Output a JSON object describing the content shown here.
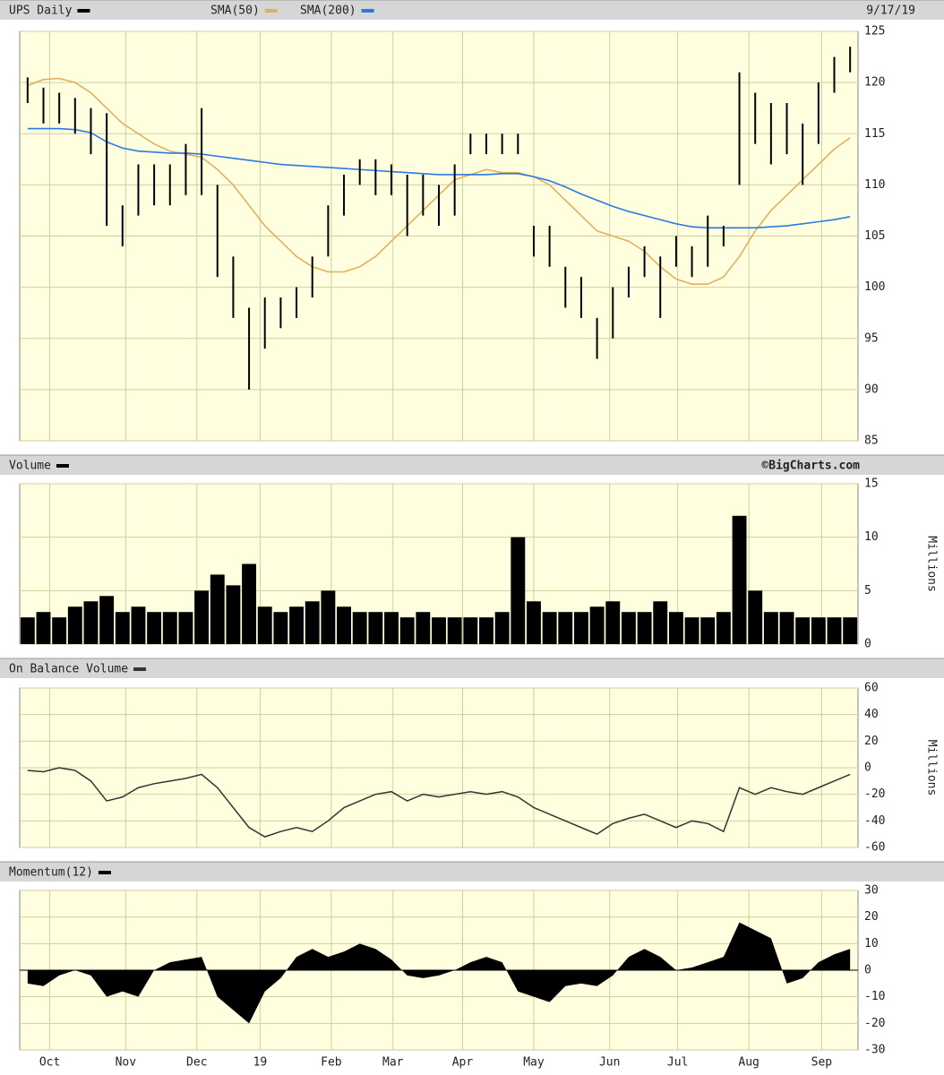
{
  "chart_data": [
    {
      "type": "range",
      "title": "UPS Daily",
      "date": "9/17/19",
      "color": "#000000",
      "high": [
        120.5,
        119.5,
        119,
        118.5,
        117.5,
        117,
        108,
        112,
        112,
        112,
        114,
        117.5,
        110,
        103,
        98,
        99,
        99,
        100,
        103,
        108,
        111,
        112.5,
        112.5,
        112,
        111,
        111,
        110,
        112,
        115,
        115,
        115,
        115,
        106,
        106,
        102,
        101,
        97,
        100,
        102,
        104,
        103,
        105,
        104,
        107,
        106,
        121,
        119,
        118,
        118,
        116,
        120,
        122.5,
        123.5
      ],
      "low": [
        118,
        116,
        116,
        115,
        113,
        106,
        104,
        107,
        108,
        108,
        109,
        109,
        101,
        97,
        90,
        94,
        96,
        97,
        99,
        103,
        107,
        110,
        109,
        109,
        105,
        107,
        106,
        107,
        113,
        113,
        113,
        113,
        103,
        102,
        98,
        97,
        93,
        95,
        99,
        101,
        97,
        102,
        101,
        102,
        104,
        110,
        114,
        112,
        113,
        110,
        114,
        119,
        121
      ],
      "series": [
        {
          "name": "SMA(50)",
          "color": "#e0b060",
          "values": [
            119.7,
            120.3,
            120.4,
            120,
            119,
            117.5,
            116,
            115,
            114,
            113.3,
            113,
            112.7,
            111.5,
            110,
            108,
            106,
            104.5,
            103,
            102,
            101.5,
            101.5,
            102,
            103,
            104.5,
            106,
            107.5,
            109,
            110.5,
            111,
            111.5,
            111.2,
            111.2,
            110.8,
            110,
            108.5,
            107,
            105.5,
            105,
            104.5,
            103.5,
            102,
            100.8,
            100.3,
            100.3,
            101,
            103,
            105.5,
            107.5,
            109,
            110.5,
            112,
            113.5,
            114.6
          ]
        },
        {
          "name": "SMA(200)",
          "color": "#2a7ae2",
          "values": [
            115.5,
            115.5,
            115.5,
            115.4,
            115.1,
            114.2,
            113.6,
            113.3,
            113.2,
            113.1,
            113.1,
            113,
            112.8,
            112.6,
            112.4,
            112.2,
            112,
            111.9,
            111.8,
            111.7,
            111.6,
            111.5,
            111.4,
            111.3,
            111.2,
            111.1,
            111,
            111,
            111,
            111,
            111.1,
            111.1,
            110.8,
            110.4,
            109.8,
            109.1,
            108.5,
            107.9,
            107.4,
            107,
            106.6,
            106.2,
            105.9,
            105.8,
            105.8,
            105.8,
            105.8,
            105.9,
            106,
            106.2,
            106.4,
            106.6,
            106.9
          ]
        }
      ],
      "ylim": [
        85,
        125
      ],
      "yticks": [
        85,
        90,
        95,
        100,
        105,
        110,
        115,
        120,
        125
      ],
      "grid": true
    },
    {
      "type": "bar",
      "title": "Volume",
      "source": "©BigCharts.com",
      "y_label": "Millions",
      "color": "#000000",
      "values": [
        2.5,
        3,
        2.5,
        3.5,
        4,
        4.5,
        3,
        3.5,
        3,
        3,
        3,
        5,
        6.5,
        5.5,
        7.5,
        3.5,
        3,
        3.5,
        4,
        5,
        3.5,
        3,
        3,
        3,
        2.5,
        3,
        2.5,
        2.5,
        2.5,
        2.5,
        3,
        10,
        4,
        3,
        3,
        3,
        3.5,
        4,
        3,
        3,
        4,
        3,
        2.5,
        2.5,
        3,
        12,
        5,
        3,
        3,
        2.5,
        2.5,
        2.5,
        2.5
      ],
      "ylim": [
        0,
        15
      ],
      "yticks": [
        0,
        5,
        10,
        15
      ],
      "grid": true
    },
    {
      "type": "line",
      "title": "On Balance Volume",
      "y_label": "Millions",
      "color": "#333333",
      "values": [
        -2,
        -3,
        0,
        -2,
        -10,
        -25,
        -22,
        -15,
        -12,
        -10,
        -8,
        -5,
        -15,
        -30,
        -45,
        -52,
        -48,
        -45,
        -48,
        -40,
        -30,
        -25,
        -20,
        -18,
        -25,
        -20,
        -22,
        -20,
        -18,
        -20,
        -18,
        -22,
        -30,
        -35,
        -40,
        -45,
        -50,
        -42,
        -38,
        -35,
        -40,
        -45,
        -40,
        -42,
        -48,
        -15,
        -20,
        -15,
        -18,
        -20,
        -15,
        -10,
        -5
      ],
      "ylim": [
        -60,
        60
      ],
      "yticks": [
        -60,
        -40,
        -20,
        0,
        20,
        40,
        60
      ],
      "grid": true
    },
    {
      "type": "area",
      "title": "Momentum(12)",
      "color": "#000000",
      "values": [
        -5,
        -6,
        -2,
        0,
        -2,
        -10,
        -8,
        -10,
        0,
        3,
        4,
        5,
        -10,
        -15,
        -20,
        -8,
        -3,
        5,
        8,
        5,
        7,
        10,
        8,
        4,
        -2,
        -3,
        -2,
        0,
        3,
        5,
        3,
        -8,
        -10,
        -12,
        -6,
        -5,
        -6,
        -2,
        5,
        8,
        5,
        0,
        1,
        3,
        5,
        18,
        15,
        12,
        -5,
        -3,
        3,
        6,
        8
      ],
      "ylim": [
        -30,
        30
      ],
      "yticks": [
        -30,
        -20,
        -10,
        0,
        10,
        20,
        30
      ],
      "grid": true,
      "xlim": [
        -0.5,
        52.5
      ],
      "xticks": [
        {
          "value": 1.4,
          "label": "Oct"
        },
        {
          "value": 6.2,
          "label": "Nov"
        },
        {
          "value": 10.7,
          "label": "Dec"
        },
        {
          "value": 14.7,
          "label": "19"
        },
        {
          "value": 19.2,
          "label": "Feb"
        },
        {
          "value": 23.1,
          "label": "Mar"
        },
        {
          "value": 27.5,
          "label": "Apr"
        },
        {
          "value": 32.0,
          "label": "May"
        },
        {
          "value": 36.8,
          "label": "Jun"
        },
        {
          "value": 41.1,
          "label": "Jul"
        },
        {
          "value": 45.6,
          "label": "Aug"
        },
        {
          "value": 50.2,
          "label": "Sep"
        }
      ]
    }
  ]
}
